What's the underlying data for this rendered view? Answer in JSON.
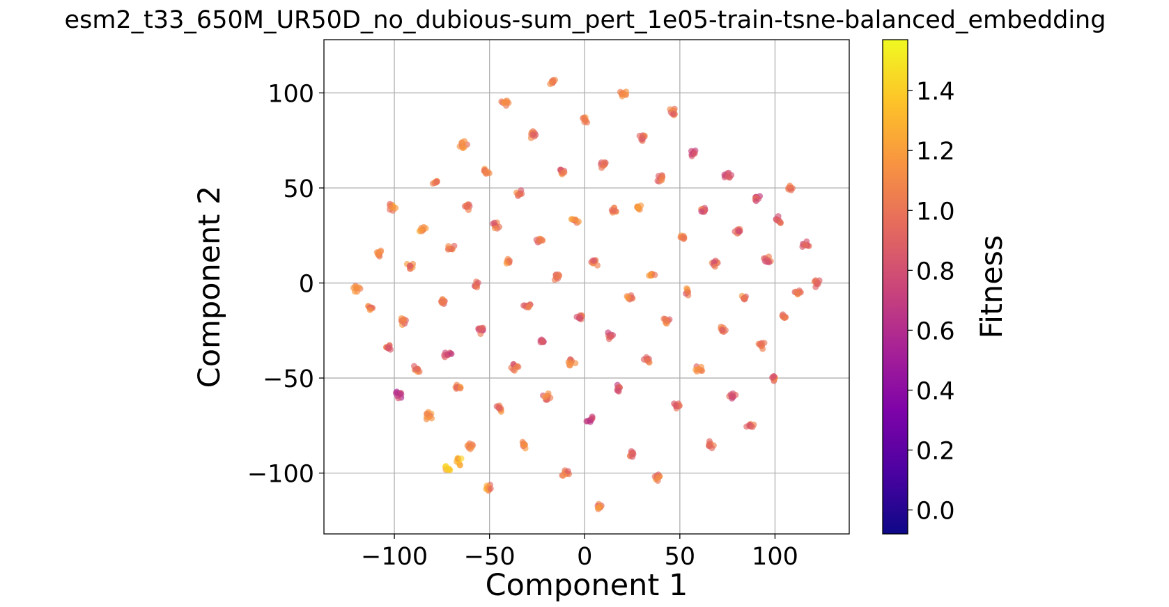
{
  "chart_data": {
    "type": "scatter",
    "title": "esm2_t33_650M_UR50D_no_dubious-sum_pert_1e05-train-tsne-balanced_embedding",
    "xlabel": "Component 1",
    "ylabel": "Component 2",
    "xlim": [
      -137,
      139
    ],
    "ylim": [
      -132,
      128
    ],
    "xticks": [
      -100,
      -50,
      0,
      50,
      100
    ],
    "yticks": [
      -100,
      -50,
      0,
      50,
      100
    ],
    "xtick_labels": [
      "−100",
      "−50",
      "0",
      "50",
      "100"
    ],
    "ytick_labels": [
      "−100",
      "−50",
      "0",
      "50",
      "100"
    ],
    "grid": true,
    "colorbar": {
      "label": "Fitness",
      "colormap": "plasma",
      "range": [
        -0.08,
        1.57
      ],
      "ticks": [
        0.0,
        0.2,
        0.4,
        0.6,
        0.8,
        1.0,
        1.2,
        1.4
      ],
      "tick_labels": [
        "0.0",
        "0.2",
        "0.4",
        "0.6",
        "0.8",
        "1.0",
        "1.2",
        "1.4"
      ]
    },
    "point_style": {
      "alpha": 0.65,
      "edge": "none"
    },
    "clusters": [
      {
        "x": -120,
        "y": -3,
        "fitness": 1.1
      },
      {
        "x": -112,
        "y": -13,
        "fitness": 1.0
      },
      {
        "x": -108,
        "y": 16,
        "fitness": 1.05
      },
      {
        "x": -104,
        "y": -34,
        "fitness": 0.95
      },
      {
        "x": -101,
        "y": 40,
        "fitness": 1.1
      },
      {
        "x": -98,
        "y": -59,
        "fitness": 0.7
      },
      {
        "x": -95,
        "y": -20,
        "fitness": 1.0
      },
      {
        "x": -92,
        "y": 9,
        "fitness": 1.05
      },
      {
        "x": -88,
        "y": -45,
        "fitness": 1.0
      },
      {
        "x": -85,
        "y": 28,
        "fitness": 1.1
      },
      {
        "x": -82,
        "y": -70,
        "fitness": 1.05
      },
      {
        "x": -78,
        "y": 53,
        "fitness": 1.05
      },
      {
        "x": -75,
        "y": -10,
        "fitness": 1.0
      },
      {
        "x": -72,
        "y": -38,
        "fitness": 0.85
      },
      {
        "x": -70,
        "y": 18,
        "fitness": 1.0
      },
      {
        "x": -67,
        "y": -55,
        "fitness": 1.1
      },
      {
        "x": -64,
        "y": 73,
        "fitness": 1.05
      },
      {
        "x": -62,
        "y": 40,
        "fitness": 1.0
      },
      {
        "x": -60,
        "y": -86,
        "fitness": 1.1
      },
      {
        "x": -57,
        "y": -1,
        "fitness": 1.0
      },
      {
        "x": -54,
        "y": -25,
        "fitness": 0.9
      },
      {
        "x": -52,
        "y": 58,
        "fitness": 1.05
      },
      {
        "x": -50,
        "y": -108,
        "fitness": 1.1
      },
      {
        "x": -47,
        "y": 30,
        "fitness": 1.0
      },
      {
        "x": -45,
        "y": -66,
        "fitness": 1.0
      },
      {
        "x": -42,
        "y": 95,
        "fitness": 1.05
      },
      {
        "x": -40,
        "y": 11,
        "fitness": 1.05
      },
      {
        "x": -37,
        "y": -44,
        "fitness": 0.95
      },
      {
        "x": -34,
        "y": 47,
        "fitness": 1.0
      },
      {
        "x": -32,
        "y": -85,
        "fitness": 1.05
      },
      {
        "x": -30,
        "y": -12,
        "fitness": 1.0
      },
      {
        "x": -27,
        "y": 78,
        "fitness": 1.05
      },
      {
        "x": -24,
        "y": 22,
        "fitness": 1.0
      },
      {
        "x": -22,
        "y": -31,
        "fitness": 0.8
      },
      {
        "x": -20,
        "y": -60,
        "fitness": 1.0
      },
      {
        "x": -17,
        "y": 106,
        "fitness": 1.05
      },
      {
        "x": -15,
        "y": 3,
        "fitness": 0.95
      },
      {
        "x": -12,
        "y": 58,
        "fitness": 1.0
      },
      {
        "x": -10,
        "y": -100,
        "fitness": 1.05
      },
      {
        "x": -7,
        "y": -42,
        "fitness": 1.0
      },
      {
        "x": -5,
        "y": 33,
        "fitness": 1.05
      },
      {
        "x": -2,
        "y": -18,
        "fitness": 0.9
      },
      {
        "x": 0,
        "y": 86,
        "fitness": 1.05
      },
      {
        "x": 3,
        "y": -72,
        "fitness": 0.75
      },
      {
        "x": 5,
        "y": 10,
        "fitness": 1.0
      },
      {
        "x": 8,
        "y": -118,
        "fitness": 1.05
      },
      {
        "x": 10,
        "y": 62,
        "fitness": 1.0
      },
      {
        "x": 13,
        "y": -28,
        "fitness": 0.9
      },
      {
        "x": 15,
        "y": 38,
        "fitness": 1.05
      },
      {
        "x": 18,
        "y": -55,
        "fitness": 0.85
      },
      {
        "x": 20,
        "y": 100,
        "fitness": 1.0
      },
      {
        "x": 23,
        "y": -8,
        "fitness": 1.0
      },
      {
        "x": 25,
        "y": -90,
        "fitness": 1.0
      },
      {
        "x": 28,
        "y": 40,
        "fitness": 1.1
      },
      {
        "x": 30,
        "y": 76,
        "fitness": 0.95
      },
      {
        "x": 33,
        "y": -40,
        "fitness": 1.0
      },
      {
        "x": 35,
        "y": 4,
        "fitness": 1.1
      },
      {
        "x": 38,
        "y": -102,
        "fitness": 1.05
      },
      {
        "x": 40,
        "y": 55,
        "fitness": 0.95
      },
      {
        "x": 43,
        "y": -20,
        "fitness": 1.0
      },
      {
        "x": 46,
        "y": 90,
        "fitness": 1.0
      },
      {
        "x": 48,
        "y": -65,
        "fitness": 0.9
      },
      {
        "x": 51,
        "y": 24,
        "fitness": 1.0
      },
      {
        "x": 54,
        "y": -5,
        "fitness": 1.0
      },
      {
        "x": 57,
        "y": 68,
        "fitness": 0.85
      },
      {
        "x": 60,
        "y": -45,
        "fitness": 1.05
      },
      {
        "x": 63,
        "y": 38,
        "fitness": 0.9
      },
      {
        "x": 66,
        "y": -85,
        "fitness": 0.95
      },
      {
        "x": 69,
        "y": 10,
        "fitness": 0.95
      },
      {
        "x": 72,
        "y": -25,
        "fitness": 1.0
      },
      {
        "x": 75,
        "y": 57,
        "fitness": 0.9
      },
      {
        "x": 78,
        "y": -60,
        "fitness": 0.85
      },
      {
        "x": 81,
        "y": 27,
        "fitness": 0.85
      },
      {
        "x": 84,
        "y": -8,
        "fitness": 1.0
      },
      {
        "x": 87,
        "y": -75,
        "fitness": 0.95
      },
      {
        "x": 90,
        "y": 45,
        "fitness": 0.85
      },
      {
        "x": 93,
        "y": -33,
        "fitness": 0.95
      },
      {
        "x": 96,
        "y": 12,
        "fitness": 0.9
      },
      {
        "x": 99,
        "y": -50,
        "fitness": 0.95
      },
      {
        "x": 102,
        "y": 33,
        "fitness": 0.9
      },
      {
        "x": 105,
        "y": -18,
        "fitness": 0.95
      },
      {
        "x": 108,
        "y": 50,
        "fitness": 0.95
      },
      {
        "x": 112,
        "y": -5,
        "fitness": 1.0
      },
      {
        "x": 116,
        "y": 20,
        "fitness": 0.9
      },
      {
        "x": 122,
        "y": 0,
        "fitness": 1.0
      },
      {
        "x": -66,
        "y": -94,
        "fitness": 1.25
      },
      {
        "x": -72,
        "y": -98,
        "fitness": 1.3
      }
    ]
  }
}
